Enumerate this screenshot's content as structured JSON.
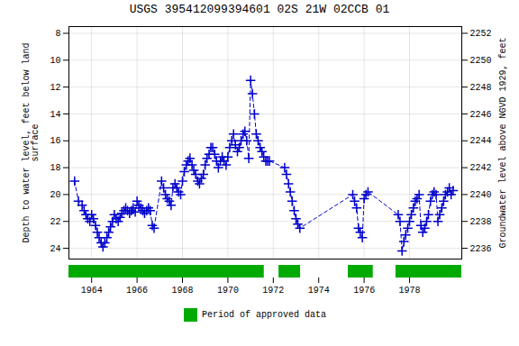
{
  "chart_data": {
    "type": "line",
    "title": "USGS 395412099394601 02S 21W 02CCB 01",
    "y_label": "Depth to water level, feet below land\nsurface",
    "y2_label": "Groundwater level above NGVD 1929, feet",
    "xlim": [
      1963.0,
      1980.3
    ],
    "xticks": [
      1964,
      1966,
      1968,
      1970,
      1972,
      1974,
      1976,
      1978
    ],
    "ylim": [
      24.8,
      7.5
    ],
    "yticks": [
      8,
      10,
      12,
      14,
      16,
      18,
      20,
      22,
      24
    ],
    "y2lim": [
      2235.2,
      2252.5
    ],
    "y2ticks": [
      2236,
      2238,
      2240,
      2242,
      2244,
      2246,
      2248,
      2250,
      2252
    ],
    "grid": true,
    "legend": "bottom",
    "x": [
      1963.25,
      1963.42,
      1963.58,
      1963.67,
      1963.75,
      1963.83,
      1963.92,
      1964.0,
      1964.08,
      1964.17,
      1964.25,
      1964.33,
      1964.42,
      1964.5,
      1964.58,
      1964.67,
      1964.75,
      1964.83,
      1964.92,
      1965.0,
      1965.08,
      1965.17,
      1965.25,
      1965.33,
      1965.42,
      1965.5,
      1965.58,
      1965.67,
      1965.75,
      1965.83,
      1965.92,
      1966.0,
      1966.08,
      1966.17,
      1966.25,
      1966.33,
      1966.42,
      1966.5,
      1966.58,
      1966.67,
      1966.75,
      1967.08,
      1967.17,
      1967.25,
      1967.33,
      1967.42,
      1967.5,
      1967.58,
      1967.67,
      1967.75,
      1967.83,
      1967.92,
      1968.0,
      1968.08,
      1968.17,
      1968.25,
      1968.33,
      1968.42,
      1968.5,
      1968.58,
      1968.67,
      1968.75,
      1968.83,
      1968.92,
      1969.0,
      1969.08,
      1969.17,
      1969.25,
      1969.33,
      1969.42,
      1969.5,
      1969.58,
      1969.67,
      1969.75,
      1969.83,
      1969.92,
      1970.0,
      1970.08,
      1970.17,
      1970.25,
      1970.33,
      1970.42,
      1970.5,
      1970.58,
      1970.67,
      1970.75,
      1970.83,
      1970.92,
      1971.0,
      1971.08,
      1971.17,
      1971.25,
      1971.33,
      1971.42,
      1971.5,
      1971.58,
      1971.67,
      1971.75,
      1971.83,
      1972.5,
      1972.58,
      1972.67,
      1972.75,
      1972.83,
      1972.92,
      1973.0,
      1973.08,
      1973.17,
      1975.5,
      1975.58,
      1975.67,
      1975.75,
      1975.83,
      1975.92,
      1976.0,
      1976.08,
      1976.17,
      1977.5,
      1977.58,
      1977.67,
      1977.75,
      1977.83,
      1977.92,
      1978.0,
      1978.08,
      1978.17,
      1978.25,
      1978.33,
      1978.42,
      1978.5,
      1978.58,
      1978.67,
      1978.75,
      1978.83,
      1978.92,
      1979.0,
      1979.08,
      1979.17,
      1979.25,
      1979.33,
      1979.42,
      1979.5,
      1979.58,
      1979.67,
      1979.75,
      1979.83,
      1979.92
    ],
    "series": [
      {
        "color": "#0000cc",
        "marker": "plus",
        "line_style": "dashed",
        "values": [
          19.0,
          20.5,
          20.8,
          21.2,
          21.5,
          21.8,
          22.0,
          21.5,
          21.8,
          22.3,
          22.8,
          23.2,
          23.6,
          23.9,
          23.6,
          23.2,
          22.8,
          22.4,
          22.0,
          21.5,
          21.8,
          22.0,
          21.7,
          21.4,
          21.2,
          21.0,
          21.2,
          21.4,
          21.2,
          21.0,
          21.3,
          20.5,
          20.8,
          21.0,
          21.2,
          21.4,
          21.2,
          21.0,
          21.2,
          22.3,
          22.5,
          19.0,
          19.5,
          20.0,
          20.3,
          20.5,
          20.8,
          19.5,
          19.2,
          19.5,
          19.8,
          20.0,
          19.0,
          18.3,
          17.8,
          17.5,
          17.3,
          17.8,
          18.2,
          18.5,
          19.0,
          19.2,
          18.8,
          18.5,
          17.8,
          17.3,
          17.0,
          16.5,
          16.5,
          17.0,
          17.5,
          18.0,
          17.5,
          17.2,
          17.5,
          17.8,
          17.2,
          16.5,
          16.0,
          15.5,
          16.3,
          16.8,
          16.5,
          16.0,
          15.5,
          15.3,
          16.0,
          17.3,
          11.5,
          12.5,
          14.0,
          15.5,
          16.0,
          16.5,
          16.8,
          17.2,
          17.5,
          17.5,
          17.5,
          18.0,
          18.5,
          19.2,
          19.8,
          20.5,
          21.2,
          21.8,
          22.2,
          22.5,
          20.0,
          20.5,
          21.0,
          22.5,
          22.8,
          23.2,
          20.3,
          20.0,
          19.8,
          21.5,
          22.0,
          24.2,
          23.5,
          23.0,
          22.5,
          22.0,
          21.5,
          21.0,
          20.5,
          20.3,
          20.0,
          22.3,
          22.8,
          22.5,
          22.0,
          21.5,
          20.5,
          20.0,
          19.8,
          20.0,
          22.0,
          21.5,
          21.0,
          20.5,
          20.0,
          19.8,
          19.5,
          20.0,
          19.7
        ]
      }
    ],
    "approved_periods": {
      "name": "Period of approved data",
      "color": "#00aa00",
      "ranges": [
        [
          1963.0,
          1971.6
        ],
        [
          1972.25,
          1973.2
        ],
        [
          1975.3,
          1976.4
        ],
        [
          1977.4,
          1980.3
        ]
      ]
    }
  }
}
